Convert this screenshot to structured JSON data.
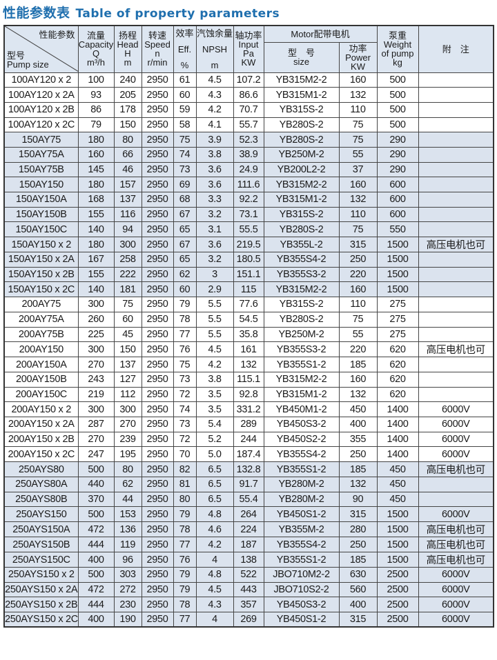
{
  "title": {
    "cn": "性能参数表",
    "en": "Table of property parameters"
  },
  "header": {
    "diag_top": "性能参数",
    "diag_bottom_cn": "型号",
    "diag_bottom_en": "Pump size",
    "capacity": [
      "流量",
      "Capacity",
      "Q",
      "m³/h"
    ],
    "head": [
      "扬程",
      "Head",
      "H",
      "m"
    ],
    "speed": [
      "转速",
      "Speed",
      "n",
      "r/min"
    ],
    "eff": [
      "效率",
      "Eff.",
      "%"
    ],
    "npsh": [
      "汽蚀余量",
      "NPSH",
      "m"
    ],
    "input": [
      "轴功率",
      "Input",
      "Pa",
      "KW"
    ],
    "motor": "Motor配带电机",
    "motor_size": [
      "型　号",
      "size"
    ],
    "motor_power": [
      "功率",
      "Power",
      "KW"
    ],
    "weight": [
      "泵重",
      "Weight",
      "of pump",
      "kg"
    ],
    "remark": "附　注"
  },
  "colors": {
    "title": "#1f6fae",
    "shade": "#dbe3ee",
    "header": "#dde6f1"
  },
  "rows": [
    [
      "100AY120 x 2",
      "100",
      "240",
      "2950",
      "61",
      "4.5",
      "107.2",
      "YB315M2-2",
      "160",
      "500",
      ""
    ],
    [
      "100AY120 x 2A",
      "93",
      "205",
      "2950",
      "60",
      "4.3",
      "86.6",
      "YB315M1-2",
      "132",
      "500",
      ""
    ],
    [
      "100AY120 x 2B",
      "86",
      "178",
      "2950",
      "59",
      "4.2",
      "70.7",
      "YB315S-2",
      "110",
      "500",
      ""
    ],
    [
      "100AY120 x 2C",
      "79",
      "150",
      "2950",
      "58",
      "4.1",
      "55.7",
      "YB280S-2",
      "75",
      "500",
      ""
    ],
    [
      "150AY75",
      "180",
      "80",
      "2950",
      "75",
      "3.9",
      "52.3",
      "YB280S-2",
      "75",
      "290",
      ""
    ],
    [
      "150AY75A",
      "160",
      "66",
      "2950",
      "74",
      "3.8",
      "38.9",
      "YB250M-2",
      "55",
      "290",
      ""
    ],
    [
      "150AY75B",
      "145",
      "46",
      "2950",
      "73",
      "3.6",
      "24.9",
      "YB200L2-2",
      "37",
      "290",
      ""
    ],
    [
      "150AY150",
      "180",
      "157",
      "2950",
      "69",
      "3.6",
      "111.6",
      "YB315M2-2",
      "160",
      "600",
      ""
    ],
    [
      "150AY150A",
      "168",
      "137",
      "2950",
      "68",
      "3.3",
      "92.2",
      "YB315M1-2",
      "132",
      "600",
      ""
    ],
    [
      "150AY150B",
      "155",
      "116",
      "2950",
      "67",
      "3.2",
      "73.1",
      "YB315S-2",
      "110",
      "600",
      ""
    ],
    [
      "150AY150C",
      "140",
      "94",
      "2950",
      "65",
      "3.1",
      "55.5",
      "YB280S-2",
      "75",
      "550",
      ""
    ],
    [
      "150AY150 x 2",
      "180",
      "300",
      "2950",
      "67",
      "3.6",
      "219.5",
      "YB355L-2",
      "315",
      "1500",
      "高压电机也可"
    ],
    [
      "150AY150 x 2A",
      "167",
      "258",
      "2950",
      "65",
      "3.2",
      "180.5",
      "YB355S4-2",
      "250",
      "1500",
      ""
    ],
    [
      "150AY150 x 2B",
      "155",
      "222",
      "2950",
      "62",
      "3",
      "151.1",
      "YB355S3-2",
      "220",
      "1500",
      ""
    ],
    [
      "150AY150 x 2C",
      "140",
      "181",
      "2950",
      "60",
      "2.9",
      "115",
      "YB315M2-2",
      "160",
      "1500",
      ""
    ],
    [
      "200AY75",
      "300",
      "75",
      "2950",
      "79",
      "5.5",
      "77.6",
      "YB315S-2",
      "110",
      "275",
      ""
    ],
    [
      "200AY75A",
      "260",
      "60",
      "2950",
      "78",
      "5.5",
      "54.5",
      "YB280S-2",
      "75",
      "275",
      ""
    ],
    [
      "200AY75B",
      "225",
      "45",
      "2950",
      "77",
      "5.5",
      "35.8",
      "YB250M-2",
      "55",
      "275",
      ""
    ],
    [
      "200AY150",
      "300",
      "150",
      "2950",
      "76",
      "4.5",
      "161",
      "YB355S3-2",
      "220",
      "620",
      "高压电机也可"
    ],
    [
      "200AY150A",
      "270",
      "137",
      "2950",
      "75",
      "4.2",
      "132",
      "YB355S1-2",
      "185",
      "620",
      ""
    ],
    [
      "200AY150B",
      "243",
      "127",
      "2950",
      "73",
      "3.8",
      "115.1",
      "YB315M2-2",
      "160",
      "620",
      ""
    ],
    [
      "200AY150C",
      "219",
      "112",
      "2950",
      "72",
      "3.5",
      "92.8",
      "YB315M1-2",
      "132",
      "620",
      ""
    ],
    [
      "200AY150 x 2",
      "300",
      "300",
      "2950",
      "74",
      "3.5",
      "331.2",
      "YB450M1-2",
      "450",
      "1400",
      "6000V"
    ],
    [
      "200AY150 x 2A",
      "287",
      "270",
      "2950",
      "73",
      "5.4",
      "289",
      "YB450S3-2",
      "400",
      "1400",
      "6000V"
    ],
    [
      "200AY150 x 2B",
      "270",
      "239",
      "2950",
      "72",
      "5.2",
      "244",
      "YB450S2-2",
      "355",
      "1400",
      "6000V"
    ],
    [
      "200AY150 x 2C",
      "247",
      "195",
      "2950",
      "70",
      "5.0",
      "187.4",
      "YB355S4-2",
      "250",
      "1400",
      "6000V"
    ],
    [
      "250AYS80",
      "500",
      "80",
      "2950",
      "82",
      "6.5",
      "132.8",
      "YB355S1-2",
      "185",
      "450",
      "高压电机也可"
    ],
    [
      "250AYS80A",
      "440",
      "62",
      "2950",
      "81",
      "6.5",
      "91.7",
      "YB280M-2",
      "132",
      "450",
      ""
    ],
    [
      "250AYS80B",
      "370",
      "44",
      "2950",
      "80",
      "6.5",
      "55.4",
      "YB280M-2",
      "90",
      "450",
      ""
    ],
    [
      "250AYS150",
      "500",
      "153",
      "2950",
      "79",
      "4.8",
      "264",
      "YB450S1-2",
      "315",
      "1500",
      "6000V"
    ],
    [
      "250AYS150A",
      "472",
      "136",
      "2950",
      "78",
      "4.6",
      "224",
      "YB355M-2",
      "280",
      "1500",
      "高压电机也可"
    ],
    [
      "250AYS150B",
      "444",
      "119",
      "2950",
      "77",
      "4.2",
      "187",
      "YB355S4-2",
      "250",
      "1500",
      "高压电机也可"
    ],
    [
      "250AYS150C",
      "400",
      "96",
      "2950",
      "76",
      "4",
      "138",
      "YB355S1-2",
      "185",
      "1500",
      "高压电机也可"
    ],
    [
      "250AYS150 x 2",
      "500",
      "303",
      "2950",
      "79",
      "4.8",
      "522",
      "JBO710M2-2",
      "630",
      "2500",
      "6000V"
    ],
    [
      "250AYS150 x 2A",
      "472",
      "272",
      "2950",
      "79",
      "4.5",
      "443",
      "JBO710S2-2",
      "560",
      "2500",
      "6000V"
    ],
    [
      "250AYS150 x 2B",
      "444",
      "230",
      "2950",
      "78",
      "4.3",
      "357",
      "YB450S3-2",
      "400",
      "2500",
      "6000V"
    ],
    [
      "250AYS150 x 2C",
      "400",
      "190",
      "2950",
      "77",
      "4",
      "269",
      "YB450S1-2",
      "315",
      "2500",
      "6000V"
    ]
  ]
}
